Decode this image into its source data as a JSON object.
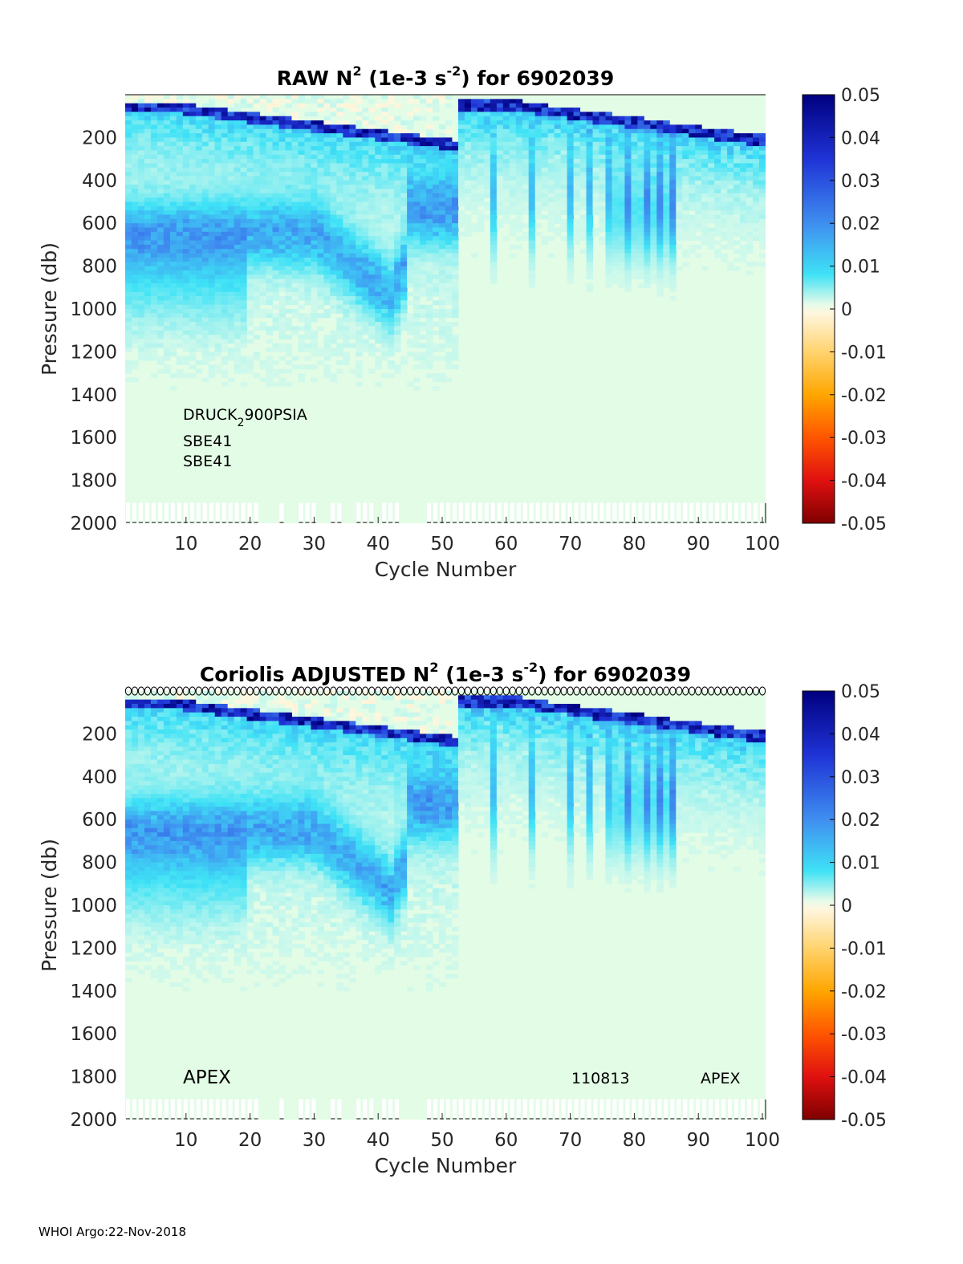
{
  "footer": "WHOI Argo:22-Nov-2018",
  "chart_data": [
    {
      "type": "heatmap",
      "title": {
        "prefix": "RAW N",
        "sup1": "2",
        "mid": " (1e-3 s",
        "sup2": "-2",
        "suffix": ") for 6902039"
      },
      "xlabel": "Cycle Number",
      "ylabel": "Pressure (db)",
      "xlim": [
        1,
        100
      ],
      "ylim": [
        2000,
        0
      ],
      "xticks": [
        10,
        20,
        30,
        40,
        50,
        60,
        70,
        80,
        90,
        100
      ],
      "yticks": [
        200,
        400,
        600,
        800,
        1000,
        1200,
        1400,
        1600,
        1800,
        2000
      ],
      "color_range": [
        -0.05,
        0.05
      ],
      "colorbar_ticks": [
        "0.05",
        "0.04",
        "0.03",
        "0.02",
        "0.01",
        "0",
        "-0.01",
        "-0.02",
        "-0.03",
        "-0.04",
        "-0.05"
      ],
      "annotations": {
        "sensor_pressure": {
          "main": "DRUCK",
          "sub": "2",
          "rest": "900PSIA"
        },
        "sensor_temp": "SBE41",
        "sensor_cond": "SBE41"
      },
      "profile_depth_markers": true,
      "top_markers": false
    },
    {
      "type": "heatmap",
      "title": {
        "prefix": "Coriolis  ADJUSTED N",
        "sup1": "2",
        "mid": " (1e-3 s",
        "sup2": "-2",
        "suffix": ") for 6902039"
      },
      "xlabel": "Cycle Number",
      "ylabel": "Pressure (db)",
      "xlim": [
        1,
        100
      ],
      "ylim": [
        2000,
        0
      ],
      "xticks": [
        10,
        20,
        30,
        40,
        50,
        60,
        70,
        80,
        90,
        100
      ],
      "yticks": [
        200,
        400,
        600,
        800,
        1000,
        1200,
        1400,
        1600,
        1800,
        2000
      ],
      "color_range": [
        -0.05,
        0.05
      ],
      "colorbar_ticks": [
        "0.05",
        "0.04",
        "0.03",
        "0.02",
        "0.01",
        "0",
        "-0.01",
        "-0.02",
        "-0.03",
        "-0.04",
        "-0.05"
      ],
      "annotations": {
        "platform_left": "APEX",
        "firmware": "110813",
        "platform_right": "APEX"
      },
      "profile_depth_markers": true,
      "top_markers": true
    }
  ]
}
